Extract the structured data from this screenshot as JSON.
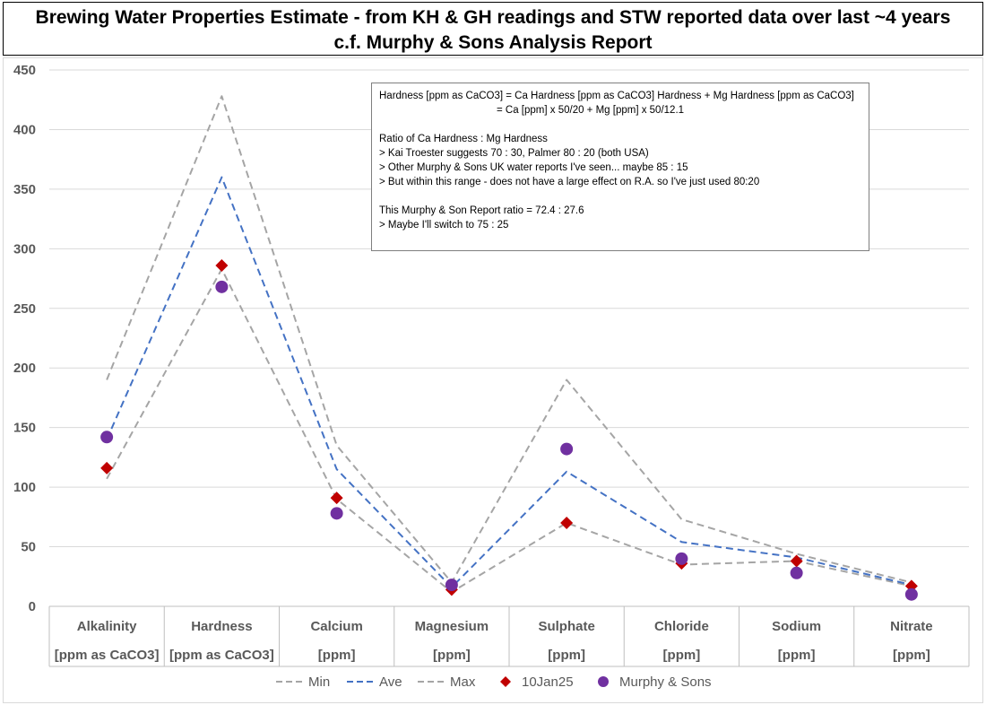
{
  "title": {
    "line1": "Brewing Water Properties Estimate - from KH & GH readings and STW reported data over last ~4 years",
    "line2": "c.f. Murphy & Sons Analysis Report"
  },
  "note": {
    "lines": [
      "Hardness [ppm as CaCO3] = Ca Hardness [ppm as CaCO3] Hardness + Mg Hardness [ppm as CaCO3]",
      "                                         = Ca [ppm] x 50/20 + Mg [ppm] x 50/12.1",
      "",
      "Ratio of Ca Hardness : Mg Hardness",
      "> Kai Troester suggests 70 : 30, Palmer 80 : 20 (both USA)",
      "> Other Murphy & Sons UK water reports I've seen... maybe 85 : 15",
      "> But within this range - does not have a large effect on R.A. so I've just used 80:20",
      "",
      "This Murphy & Son Report ratio = 72.4 : 27.6",
      "> Maybe I'll switch to 75 : 25"
    ]
  },
  "chart_data": {
    "type": "line",
    "title": "Brewing Water Properties Estimate - from KH & GH readings and STW reported data over last ~4 years c.f. Murphy & Sons Analysis Report",
    "categories": [
      "Alkalinity",
      "Hardness",
      "Calcium",
      "Magnesium",
      "Sulphate",
      "Chloride",
      "Sodium",
      "Nitrate"
    ],
    "units": [
      "[ppm as CaCO3]",
      "[ppm as CaCO3]",
      "[ppm]",
      "[ppm]",
      "[ppm]",
      "[ppm]",
      "[ppm]",
      "[ppm]"
    ],
    "ylim": [
      0,
      450
    ],
    "yticks": [
      0,
      50,
      100,
      150,
      200,
      250,
      300,
      350,
      400,
      450
    ],
    "grid": true,
    "legend_position": "bottom",
    "series": [
      {
        "name": "Min",
        "kind": "line",
        "dash": "dashed",
        "color": "#a5a5a5",
        "values": [
          107,
          283,
          90,
          12,
          70,
          35,
          38,
          17
        ]
      },
      {
        "name": "Ave",
        "kind": "line",
        "dash": "dashed",
        "color": "#4472c4",
        "values": [
          140,
          360,
          115,
          16,
          113,
          54,
          41,
          18
        ]
      },
      {
        "name": "Max",
        "kind": "line",
        "dash": "dashed",
        "color": "#a5a5a5",
        "values": [
          190,
          428,
          135,
          20,
          190,
          73,
          44,
          20
        ]
      },
      {
        "name": "10Jan25",
        "kind": "marker",
        "marker": "diamond",
        "color": "#c00000",
        "values": [
          116,
          286,
          91,
          14,
          70,
          36,
          38,
          17
        ]
      },
      {
        "name": "Murphy & Sons",
        "kind": "marker",
        "marker": "circle",
        "color": "#7030a0",
        "values": [
          142,
          268,
          78,
          18,
          132,
          40,
          28,
          10
        ]
      }
    ]
  }
}
